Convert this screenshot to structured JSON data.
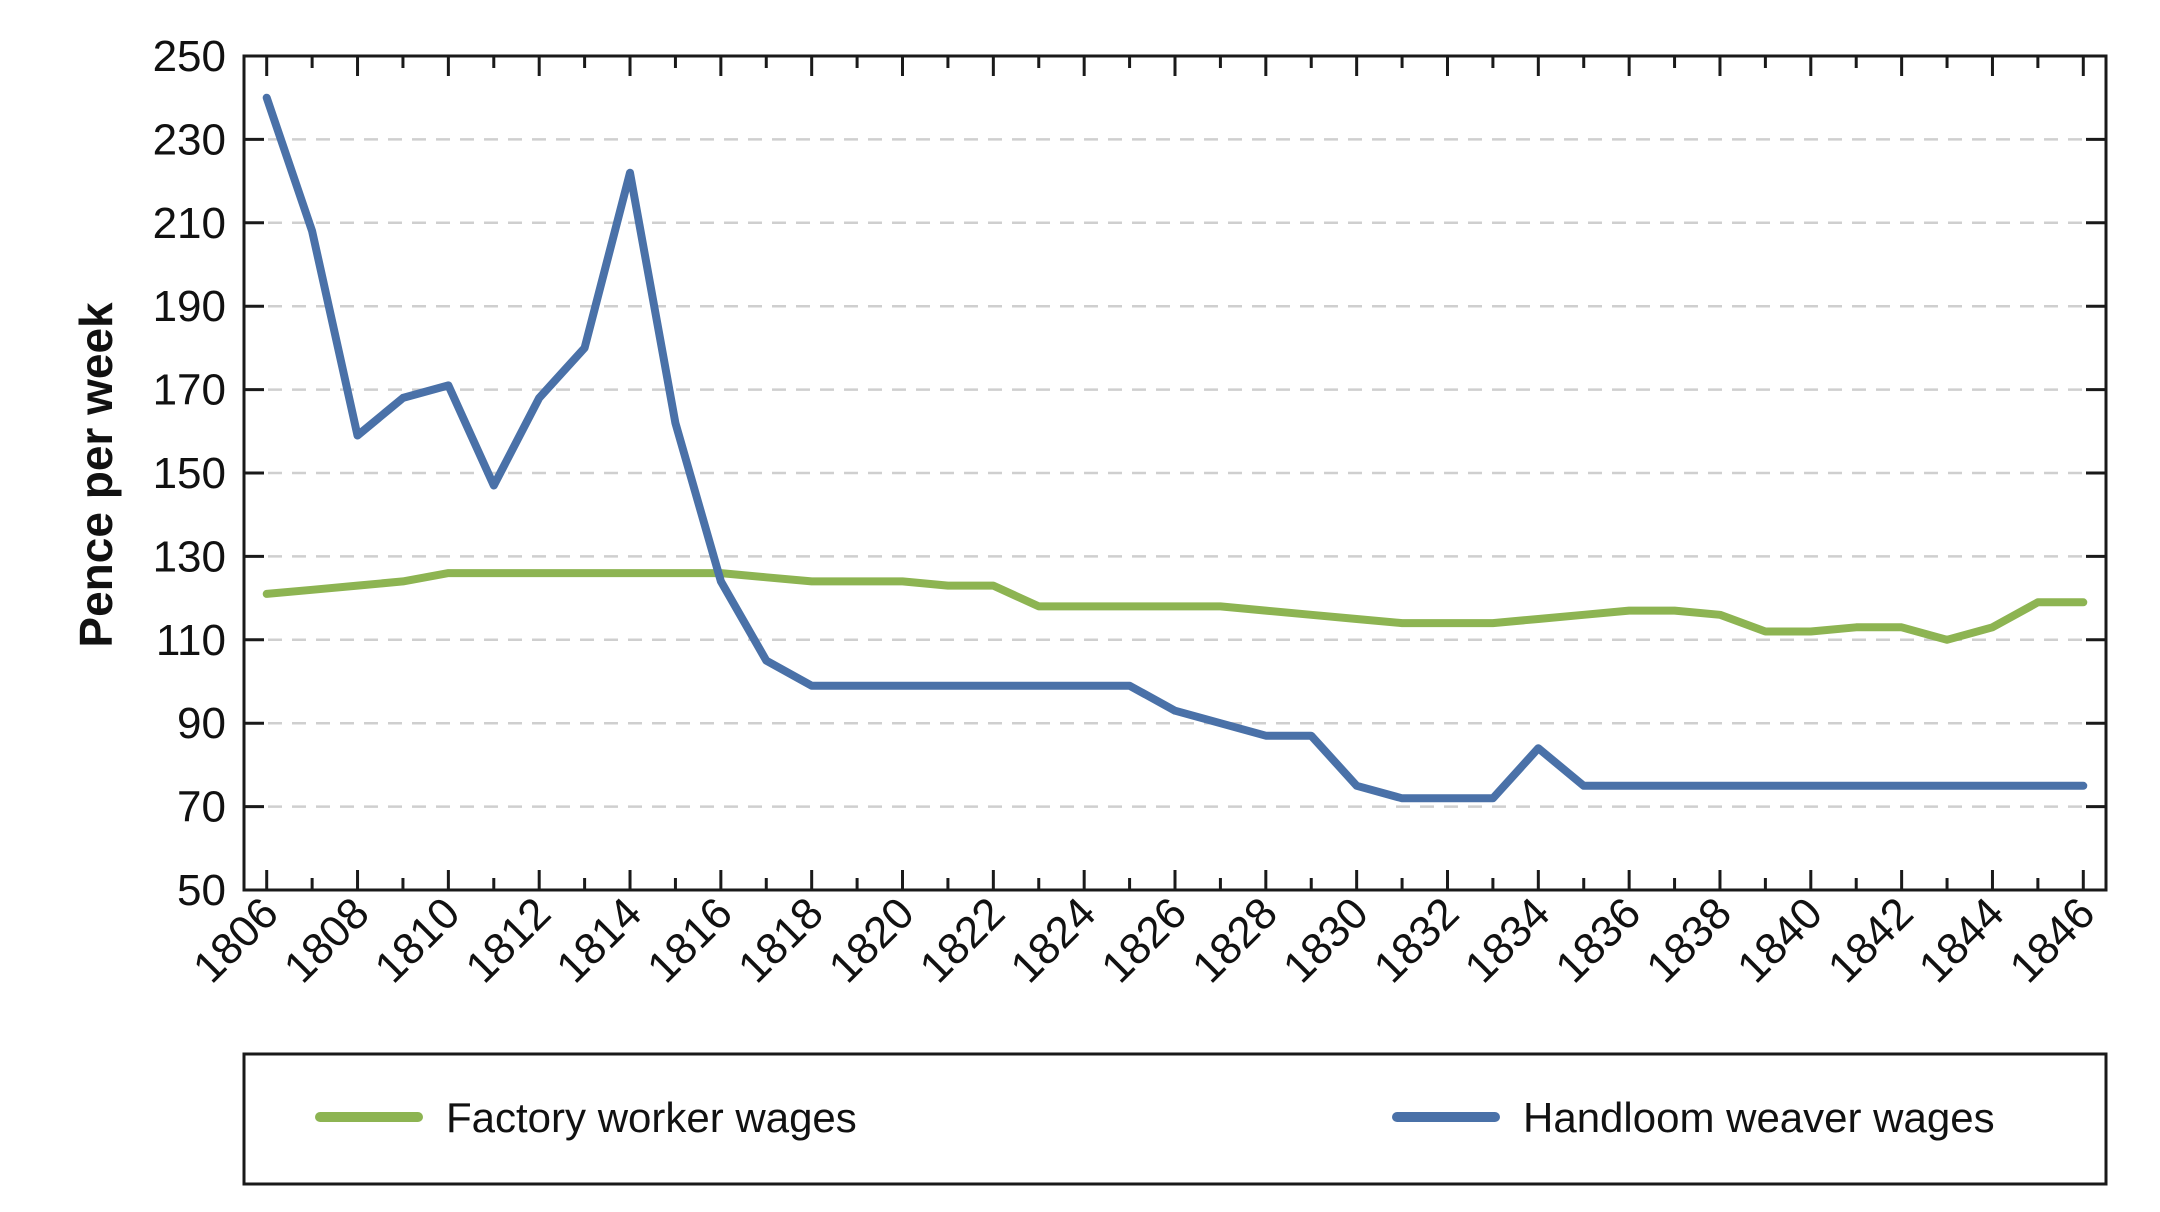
{
  "chart_data": {
    "type": "line",
    "title": "",
    "xlabel": "",
    "ylabel": "Pence per week",
    "x": [
      1806,
      1807,
      1808,
      1809,
      1810,
      1811,
      1812,
      1813,
      1814,
      1815,
      1816,
      1817,
      1818,
      1819,
      1820,
      1821,
      1822,
      1823,
      1824,
      1825,
      1826,
      1827,
      1828,
      1829,
      1830,
      1831,
      1832,
      1833,
      1834,
      1835,
      1836,
      1837,
      1838,
      1839,
      1840,
      1841,
      1842,
      1843,
      1844,
      1845,
      1846
    ],
    "xlim": [
      1805.5,
      1846.5
    ],
    "ylim": [
      50,
      250
    ],
    "yticks": [
      "250",
      "230",
      "210",
      "190",
      "170",
      "150",
      "130",
      "110",
      "90",
      "70",
      "50"
    ],
    "xticks": [
      "1806",
      "1808",
      "1810",
      "1812",
      "1814",
      "1816",
      "1818",
      "1820",
      "1822",
      "1824",
      "1826",
      "1828",
      "1830",
      "1832",
      "1834",
      "1836",
      "1838",
      "1840",
      "1842",
      "1844",
      "1846"
    ],
    "grid": "horizontal-dashed",
    "legend_position": "bottom",
    "series": [
      {
        "name": "Factory worker wages",
        "color": "#8db452",
        "values": [
          121,
          122,
          123,
          124,
          126,
          126,
          126,
          126,
          126,
          126,
          126,
          125,
          124,
          124,
          124,
          123,
          123,
          118,
          118,
          118,
          118,
          118,
          117,
          116,
          115,
          114,
          114,
          114,
          115,
          116,
          117,
          117,
          116,
          112,
          112,
          113,
          113,
          110,
          113,
          119,
          119
        ]
      },
      {
        "name": "Handloom weaver wages",
        "color": "#4a71a8",
        "values": [
          240,
          208,
          159,
          168,
          171,
          147,
          168,
          180,
          222,
          162,
          124,
          105,
          99,
          99,
          99,
          99,
          99,
          99,
          99,
          99,
          93,
          90,
          87,
          87,
          75,
          72,
          72,
          72,
          84,
          75,
          75,
          75,
          75,
          75,
          75,
          75,
          75,
          75,
          75,
          75,
          75
        ]
      }
    ]
  }
}
